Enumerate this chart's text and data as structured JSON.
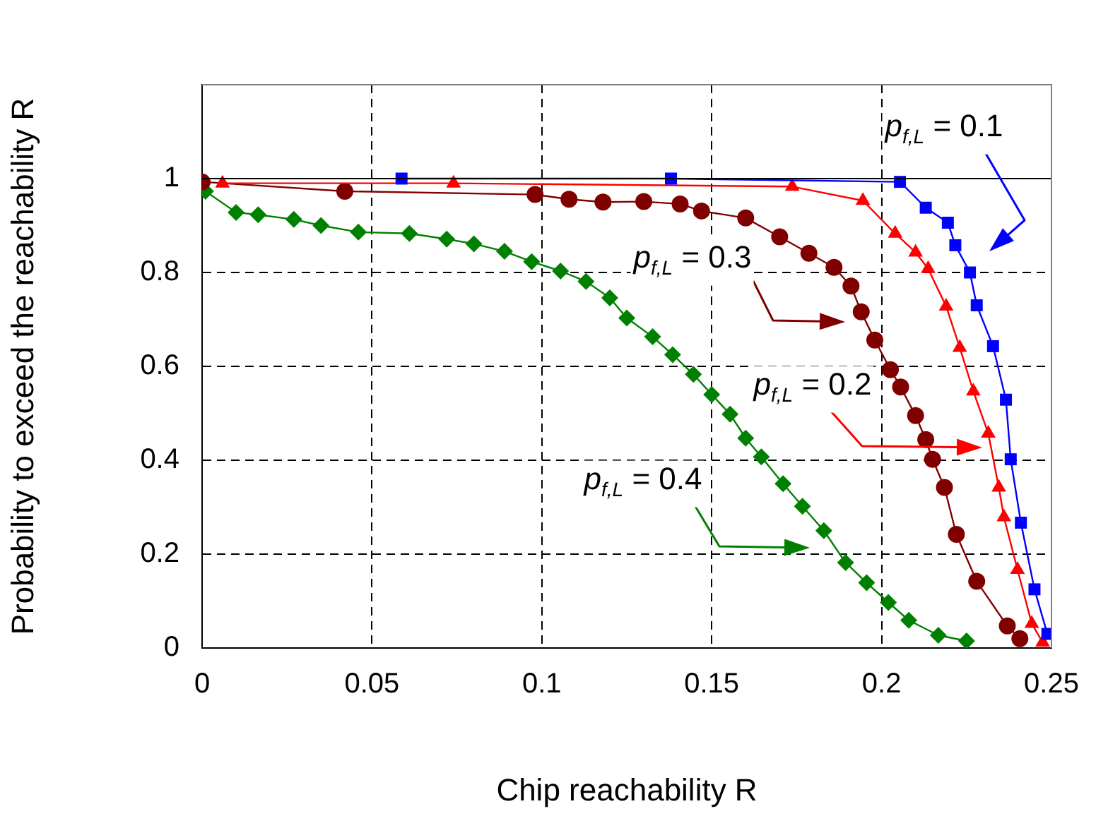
{
  "chart_data": {
    "type": "line",
    "xlabel": "Chip reachability R",
    "ylabel": "Probability to exceed the reachability R",
    "xlim": [
      0,
      0.25
    ],
    "xticks": [
      0,
      0.05,
      0.1,
      0.15,
      0.2,
      0.25
    ],
    "ylim": [
      0,
      1.2
    ],
    "yticks": [
      0,
      0.2,
      0.4,
      0.6,
      0.8,
      1
    ],
    "grid": true,
    "legend": false,
    "line_style": "solid",
    "ref_lines": [
      {
        "axis": "y",
        "value": 1,
        "color": "#000000",
        "line_style": "solid"
      }
    ],
    "series": [
      {
        "color": "#0000ff",
        "marker": "square",
        "x": [
          0.0587,
          0.138,
          0.2054,
          0.213,
          0.2195,
          0.2217,
          0.226,
          0.228,
          0.2328,
          0.2366,
          0.238,
          0.241,
          0.245,
          0.2488
        ],
        "values": [
          1.0,
          1.0,
          0.993,
          0.938,
          0.906,
          0.858,
          0.8,
          0.73,
          0.643,
          0.529,
          0.402,
          0.267,
          0.125,
          0.03
        ]
      },
      {
        "color": "#ff0000",
        "marker": "triangle",
        "x": [
          0.006,
          0.074,
          0.1737,
          0.1945,
          0.204,
          0.21,
          0.2137,
          0.219,
          0.223,
          0.227,
          0.2314,
          0.2345,
          0.236,
          0.24,
          0.2442,
          0.2474
        ],
        "values": [
          0.99,
          0.99,
          0.983,
          0.953,
          0.883,
          0.843,
          0.808,
          0.728,
          0.64,
          0.547,
          0.457,
          0.342,
          0.279,
          0.167,
          0.052,
          0.012
        ]
      },
      {
        "color": "#800000",
        "marker": "circle",
        "x": [
          0,
          0.042,
          0.098,
          0.108,
          0.118,
          0.13,
          0.1407,
          0.147,
          0.16,
          0.17,
          0.1786,
          0.186,
          0.191,
          0.194,
          0.198,
          0.2026,
          0.2056,
          0.21,
          0.213,
          0.215,
          0.2185,
          0.222,
          0.228,
          0.237,
          0.2407
        ],
        "values": [
          0.993,
          0.973,
          0.966,
          0.956,
          0.95,
          0.951,
          0.946,
          0.931,
          0.916,
          0.876,
          0.841,
          0.811,
          0.771,
          0.716,
          0.656,
          0.593,
          0.556,
          0.495,
          0.444,
          0.402,
          0.342,
          0.242,
          0.142,
          0.047,
          0.02
        ]
      },
      {
        "color": "#008000",
        "marker": "diamond",
        "x": [
          0.001,
          0.01,
          0.0165,
          0.027,
          0.035,
          0.046,
          0.061,
          0.072,
          0.08,
          0.089,
          0.097,
          0.1055,
          0.113,
          0.12,
          0.125,
          0.1326,
          0.1385,
          0.1446,
          0.15,
          0.1554,
          0.16,
          0.1646,
          0.171,
          0.1767,
          0.183,
          0.1894,
          0.1956,
          0.202,
          0.208,
          0.2167,
          0.225
        ],
        "values": [
          0.973,
          0.928,
          0.923,
          0.913,
          0.9,
          0.886,
          0.883,
          0.871,
          0.861,
          0.845,
          0.823,
          0.803,
          0.781,
          0.746,
          0.703,
          0.663,
          0.625,
          0.583,
          0.54,
          0.498,
          0.447,
          0.407,
          0.35,
          0.302,
          0.25,
          0.182,
          0.139,
          0.097,
          0.059,
          0.027,
          0.015
        ]
      }
    ],
    "annotations": [
      "p$_{f,L}$ = 0.1",
      "p$_{f,L}$ = 0.2",
      "p$_{f,L}$ = 0.3",
      "p$_{f,L}$ = 0.4"
    ]
  }
}
